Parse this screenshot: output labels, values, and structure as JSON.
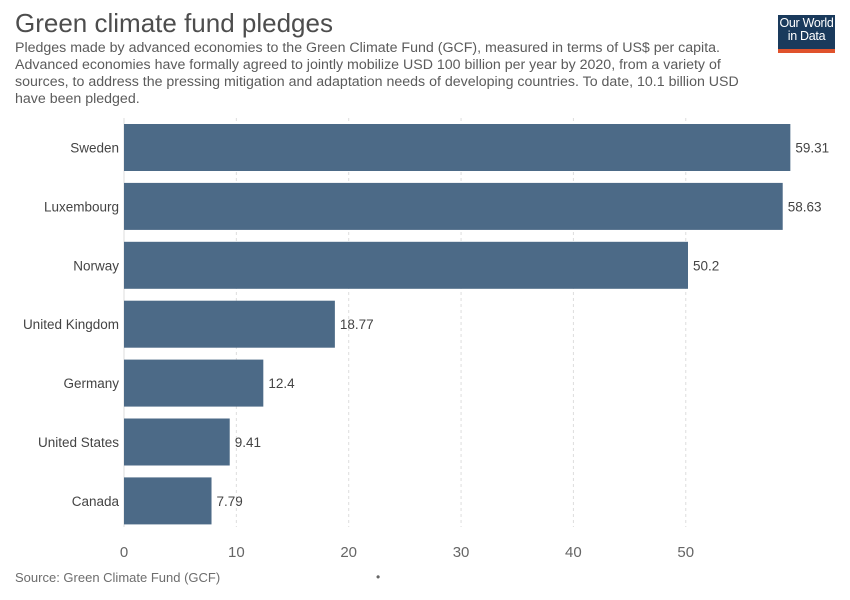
{
  "title": "Green climate fund pledges",
  "subtitle": "Pledges made by advanced economies to the Green Climate Fund (GCF), measured in terms of US$ per capita. Advanced economies have formally agreed to jointly mobilize USD 100 billion per year by 2020, from a variety of sources, to address the pressing mitigation and adaptation needs of developing countries. To date, 10.1 billion USD have been pledged.",
  "logo": {
    "line1": "Our World",
    "line2": "in Data"
  },
  "source": "Source: Green Climate Fund (GCF)",
  "colors": {
    "bar": "#4c6a87",
    "accent": "#e0522c",
    "logo_bg": "#1a3a5c",
    "grid": "#dddddd"
  },
  "chart_data": {
    "type": "bar",
    "orientation": "horizontal",
    "categories": [
      "Sweden",
      "Luxembourg",
      "Norway",
      "United Kingdom",
      "Germany",
      "United States",
      "Canada"
    ],
    "values": [
      59.31,
      58.63,
      50.2,
      18.77,
      12.4,
      9.41,
      7.79
    ],
    "value_labels": [
      "59.31",
      "58.63",
      "50.2",
      "18.77",
      "12.4",
      "9.41",
      "7.79"
    ],
    "xticks": [
      0,
      10,
      20,
      30,
      40,
      50
    ],
    "xlim": [
      0,
      60
    ],
    "grid": "vertical dashed",
    "title": "Green climate fund pledges",
    "xlabel": "",
    "ylabel": ""
  }
}
